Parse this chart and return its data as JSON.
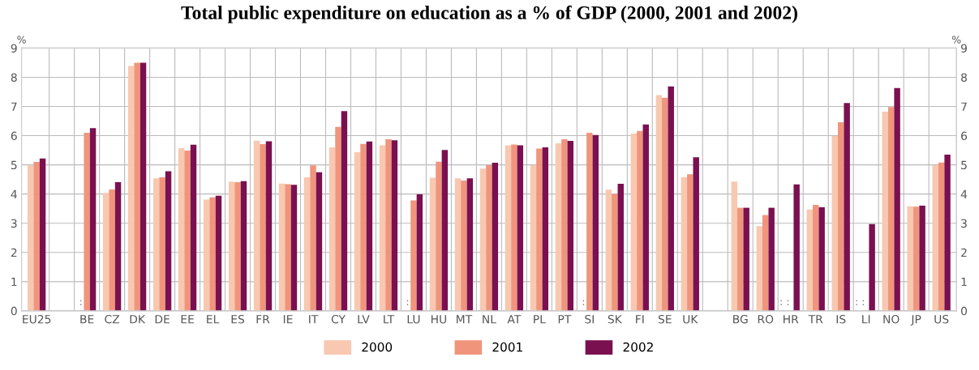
{
  "chart_data": {
    "type": "bar",
    "title": "Total public expenditure on education as a % of GDP (2000, 2001 and 2002)",
    "categories": [
      "EU25",
      null,
      "BE",
      "CZ",
      "DK",
      "DE",
      "EE",
      "EL",
      "ES",
      "FR",
      "IE",
      "IT",
      "CY",
      "LV",
      "LT",
      "LU",
      "HU",
      "MT",
      "NL",
      "AT",
      "PL",
      "PT",
      "SI",
      "SK",
      "FI",
      "SE",
      "UK",
      null,
      "BG",
      "RO",
      "HR",
      "TR",
      "IS",
      "LI",
      "NO",
      "JP",
      "US"
    ],
    "series": [
      {
        "name": "2000",
        "color": "#f8c8b0",
        "values": [
          4.98,
          null,
          null,
          4.04,
          8.39,
          4.54,
          5.57,
          3.81,
          4.42,
          5.83,
          4.36,
          4.57,
          5.6,
          5.43,
          5.67,
          null,
          4.56,
          4.54,
          4.87,
          5.67,
          4.99,
          5.74,
          null,
          4.15,
          6.07,
          7.39,
          4.58,
          null,
          4.43,
          2.9,
          null,
          3.47,
          5.99,
          null,
          6.82,
          3.58,
          4.99
        ]
      },
      {
        "name": "2001",
        "color": "#f0957c",
        "values": [
          5.1,
          null,
          6.1,
          4.16,
          8.5,
          4.57,
          5.49,
          3.89,
          4.41,
          5.71,
          4.34,
          4.98,
          6.3,
          5.72,
          5.88,
          3.78,
          5.11,
          4.46,
          4.99,
          5.7,
          5.56,
          5.88,
          6.1,
          4.0,
          6.16,
          7.3,
          4.68,
          null,
          3.53,
          3.28,
          null,
          3.63,
          6.46,
          null,
          6.98,
          3.57,
          5.08
        ]
      },
      {
        "name": "2002",
        "color": "#7a1050",
        "values": [
          5.22,
          null,
          6.26,
          4.41,
          8.5,
          4.78,
          5.69,
          3.94,
          4.44,
          5.81,
          4.32,
          4.75,
          6.84,
          5.8,
          5.84,
          3.99,
          5.51,
          4.54,
          5.07,
          5.67,
          5.6,
          5.82,
          6.02,
          4.35,
          6.38,
          7.69,
          5.26,
          null,
          3.53,
          3.53,
          4.33,
          3.55,
          7.12,
          2.97,
          7.63,
          3.6,
          5.35
        ]
      }
    ],
    "ylabel": "%",
    "y2label": "%",
    "ylim": [
      0,
      9
    ],
    "yticks": [
      0,
      1,
      2,
      3,
      4,
      5,
      6,
      7,
      8,
      9
    ],
    "y2lim": [
      0,
      9
    ],
    "y2ticks": [
      0,
      1,
      2,
      3,
      4,
      5,
      6,
      7,
      8,
      9
    ],
    "annotations": [
      {
        "text": ":",
        "x": "BE",
        "y": 0
      },
      {
        "text": ":",
        "x": "LU",
        "y": 0
      },
      {
        "text": ":",
        "x": "SI",
        "y": 0
      },
      {
        "text": ": :",
        "x": "HR",
        "y": 0
      },
      {
        "text": ": :",
        "x": "LI",
        "y": 0
      }
    ],
    "grid": true,
    "legend": "bottom"
  }
}
